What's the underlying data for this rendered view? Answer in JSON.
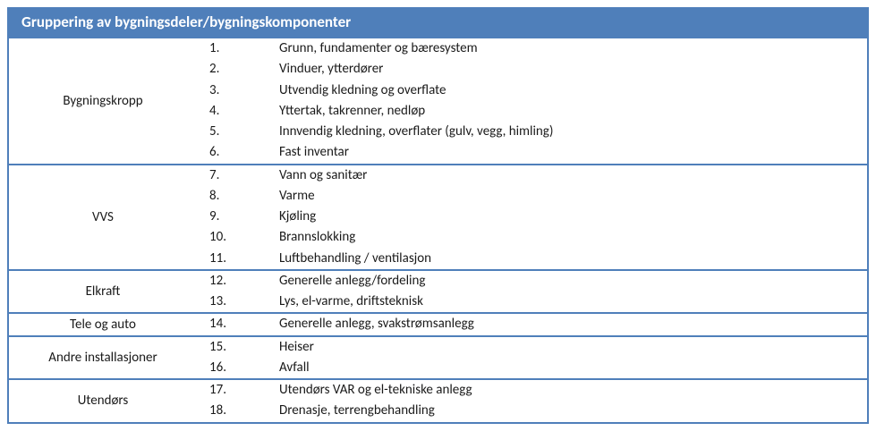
{
  "title": "Gruppering av bygningsdeler/bygningskomponenter",
  "border_color": "#4f7fba",
  "header_bg": "#4f7fba",
  "header_fg": "#ffffff",
  "font_size_header": 17,
  "font_size_body": 15,
  "groups": [
    {
      "label": "Bygningskropp",
      "items": [
        {
          "num": "1.",
          "desc": "Grunn, fundamenter og bæresystem"
        },
        {
          "num": "2.",
          "desc": "Vinduer, ytterdører"
        },
        {
          "num": "3.",
          "desc": "Utvendig kledning og overflate"
        },
        {
          "num": "4.",
          "desc": "Yttertak, takrenner, nedløp"
        },
        {
          "num": "5.",
          "desc": "Innvendig kledning, overflater (gulv, vegg, himling)"
        },
        {
          "num": "6.",
          "desc": "Fast inventar"
        }
      ]
    },
    {
      "label": "VVS",
      "items": [
        {
          "num": "7.",
          "desc": "Vann og sanitær"
        },
        {
          "num": "8.",
          "desc": "Varme"
        },
        {
          "num": "9.",
          "desc": "Kjøling"
        },
        {
          "num": "10.",
          "desc": "Brannslokking"
        },
        {
          "num": "11.",
          "desc": "Luftbehandling / ventilasjon"
        }
      ]
    },
    {
      "label": "Elkraft",
      "items": [
        {
          "num": "12.",
          "desc": "Generelle anlegg/fordeling"
        },
        {
          "num": "13.",
          "desc": "Lys, el-varme, driftsteknisk"
        }
      ]
    },
    {
      "label": "Tele og auto",
      "items": [
        {
          "num": "14.",
          "desc": "Generelle anlegg, svakstrømsanlegg"
        }
      ]
    },
    {
      "label": "Andre installasjoner",
      "items": [
        {
          "num": "15.",
          "desc": "Heiser"
        },
        {
          "num": "16.",
          "desc": "Avfall"
        }
      ]
    },
    {
      "label": "Utendørs",
      "items": [
        {
          "num": "17.",
          "desc": "Utendørs VAR og el-tekniske anlegg"
        },
        {
          "num": "18.",
          "desc": "Drenasje, terrengbehandling"
        }
      ]
    }
  ]
}
